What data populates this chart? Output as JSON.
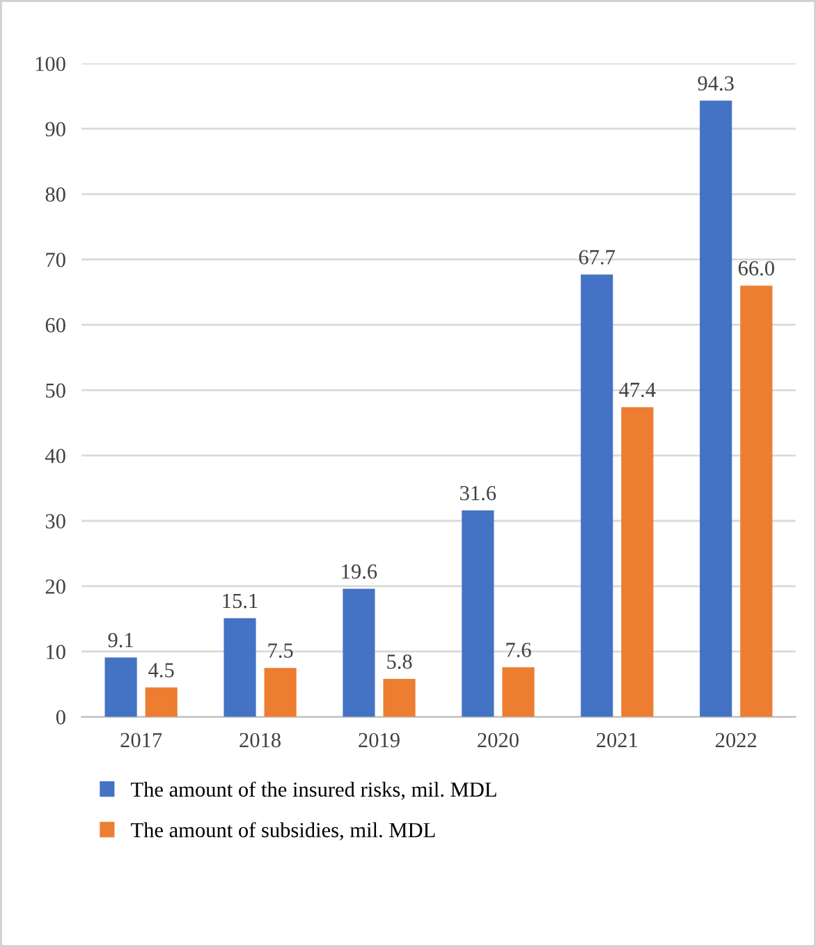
{
  "chart_data": {
    "type": "bar",
    "categories": [
      "2017",
      "2018",
      "2019",
      "2020",
      "2021",
      "2022"
    ],
    "series": [
      {
        "name": "The amount of the insured risks, mil. MDL",
        "color": "#4472c4",
        "values": [
          9.1,
          15.1,
          19.6,
          31.6,
          67.7,
          94.3
        ],
        "value_labels": [
          "9.1",
          "15.1",
          "19.6",
          "31.6",
          "67.7",
          "94.3"
        ]
      },
      {
        "name": "The amount of subsidies, mil. MDL",
        "color": "#ed7d31",
        "values": [
          4.5,
          7.5,
          5.8,
          7.6,
          47.4,
          66.0
        ],
        "value_labels": [
          "4.5",
          "7.5",
          "5.8",
          "7.6",
          "47.4",
          "66.0"
        ]
      }
    ],
    "ylim": [
      0,
      100
    ],
    "yticks": [
      0,
      10,
      20,
      30,
      40,
      50,
      60,
      70,
      80,
      90,
      100
    ],
    "grid": "y",
    "legend": "bottom"
  }
}
